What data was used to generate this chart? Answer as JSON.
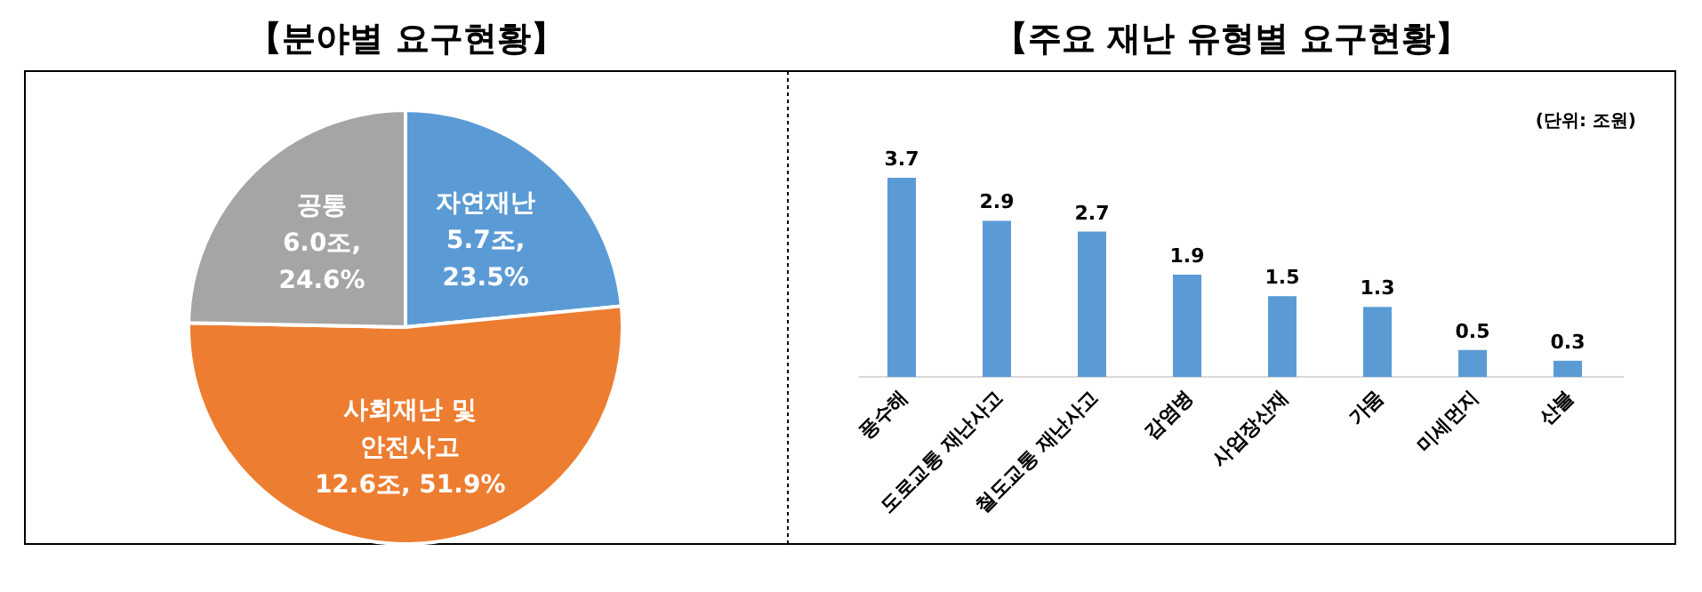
{
  "chart_data": [
    {
      "type": "pie",
      "title": "【분야별 요구현황】",
      "categories": [
        "자연재난",
        "사회재난 및\n안전사고",
        "공통"
      ],
      "values": [
        5.7,
        12.6,
        6.0
      ],
      "value_labels": [
        "5.7조,\n23.5%",
        "12.6조, 51.9%",
        "6.0조,\n24.6%"
      ],
      "colors": [
        "#5b9bd5",
        "#ed7d31",
        "#a5a5a5"
      ]
    },
    {
      "type": "bar",
      "title": "【주요 재난 유형별 요구현황】",
      "annotations": [
        "(단위: 조원)"
      ],
      "categories": [
        "풍수해",
        "도로교통 재난사고",
        "철도교통 재난사고",
        "감염병",
        "사업장산재",
        "가뭄",
        "미세먼지",
        "산불"
      ],
      "values": [
        3.7,
        2.9,
        2.7,
        1.9,
        1.5,
        1.3,
        0.5,
        0.3
      ],
      "color": "#5b9bd5",
      "data_labels": true
    }
  ]
}
